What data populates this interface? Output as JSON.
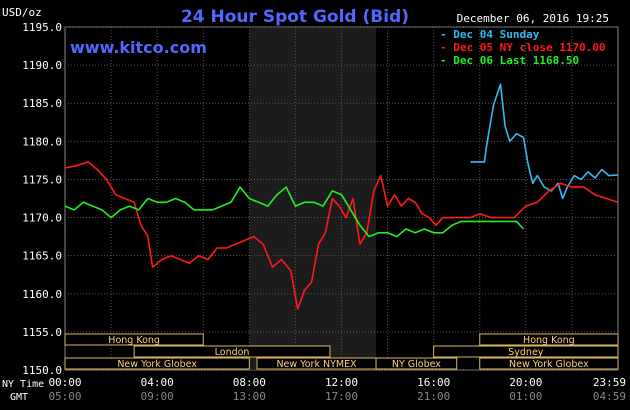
{
  "header": {
    "unit": "USD/oz",
    "title": "24 Hour Spot Gold (Bid)",
    "website": "www.kitco.com",
    "date": "December 06, 2016 19:25"
  },
  "legend": [
    {
      "label": "Dec 04 Sunday",
      "color": "#33bbee"
    },
    {
      "label": "Dec 05 NY close 1170.00",
      "color": "#ff1a1a"
    },
    {
      "label": "Dec 06 Last 1168.50",
      "color": "#22ee22"
    }
  ],
  "sessions": [
    {
      "label": "Hong Kong",
      "row": 0,
      "start": "00:00",
      "end": "06:00"
    },
    {
      "label": "Hong Kong",
      "row": 0,
      "start": "18:00",
      "end": "24:00"
    },
    {
      "label": "London",
      "row": 1,
      "start": "03:00",
      "end": "11:30"
    },
    {
      "label": "Sydney",
      "row": 1,
      "start": "16:00",
      "end": "24:00"
    },
    {
      "label": "New York Globex",
      "row": 2,
      "start": "00:00",
      "end": "08:00"
    },
    {
      "label": "New York NYMEX",
      "row": 2,
      "start": "08:20",
      "end": "13:30"
    },
    {
      "label": "NY Globex",
      "row": 2,
      "start": "13:30",
      "end": "17:00"
    },
    {
      "label": "New York Globex",
      "row": 2,
      "start": "18:00",
      "end": "24:00"
    }
  ],
  "time_labels": {
    "ny_label": "NY Time",
    "gmt_label": "GMT",
    "ny": [
      "00:00",
      "04:00",
      "08:00",
      "12:00",
      "16:00",
      "20:00",
      "23:59"
    ],
    "gmt": [
      "05:00",
      "09:00",
      "13:00",
      "17:00",
      "21:00",
      "01:00",
      "04:59"
    ]
  },
  "chart_data": {
    "type": "line",
    "title": "24 Hour Spot Gold (Bid)",
    "ylabel": "USD/oz",
    "xlabel": "",
    "ylim": [
      1150,
      1195
    ],
    "xlim": [
      0,
      24
    ],
    "yticks": [
      "1195.0",
      "1190.0",
      "1185.0",
      "1180.0",
      "1175.0",
      "1170.0",
      "1165.0",
      "1160.0",
      "1155.0",
      "1150.0"
    ],
    "grid": true,
    "highlight_hours": [
      8.0,
      13.5
    ],
    "legend_position": "top-right",
    "series": [
      {
        "name": "Dec 04 Sunday",
        "color": "#33bbee",
        "x": [
          17.6,
          18.2,
          18.3,
          18.6,
          18.9,
          19.1,
          19.3,
          19.6,
          19.9,
          20.1,
          20.3,
          20.5,
          20.8,
          21.1,
          21.4,
          21.6,
          21.8,
          22.1,
          22.4,
          22.7,
          23.0,
          23.3,
          23.6,
          23.99
        ],
        "y": [
          1177.3,
          1177.3,
          1179.5,
          1184.8,
          1187.5,
          1182.0,
          1180.0,
          1181.0,
          1180.5,
          1177.0,
          1174.5,
          1175.5,
          1174.0,
          1173.5,
          1174.5,
          1172.5,
          1174.0,
          1175.5,
          1175.0,
          1176.0,
          1175.2,
          1176.3,
          1175.5,
          1175.6
        ]
      },
      {
        "name": "Dec 05 NY close 1170.00",
        "color": "#ff1a1a",
        "x": [
          0,
          0.5,
          1.0,
          1.4,
          1.8,
          2.2,
          2.6,
          3.0,
          3.3,
          3.6,
          3.8,
          4.2,
          4.6,
          5.0,
          5.4,
          5.8,
          6.2,
          6.6,
          7.0,
          7.4,
          7.8,
          8.2,
          8.6,
          9.0,
          9.4,
          9.8,
          10.1,
          10.4,
          10.7,
          11.0,
          11.3,
          11.6,
          11.9,
          12.2,
          12.5,
          12.8,
          13.1,
          13.4,
          13.7,
          14.0,
          14.3,
          14.6,
          14.9,
          15.2,
          15.5,
          15.8,
          16.1,
          16.4,
          16.8,
          17.2,
          17.6,
          18.0,
          18.5,
          19.0,
          19.5,
          20.0,
          20.5,
          21.0,
          21.5,
          22.0,
          22.5,
          23.0,
          23.5,
          23.99
        ],
        "y": [
          1176.5,
          1176.8,
          1177.3,
          1176.3,
          1175.0,
          1173.0,
          1172.5,
          1172.0,
          1169.0,
          1167.5,
          1163.5,
          1164.5,
          1165.0,
          1164.5,
          1164.0,
          1165.0,
          1164.5,
          1166.0,
          1166.0,
          1166.5,
          1167.0,
          1167.5,
          1166.5,
          1163.5,
          1164.5,
          1163.0,
          1158.0,
          1160.5,
          1161.5,
          1166.5,
          1168.0,
          1172.5,
          1171.5,
          1170.0,
          1172.5,
          1166.5,
          1168.0,
          1173.5,
          1175.5,
          1171.5,
          1173.0,
          1171.5,
          1172.5,
          1172.0,
          1170.5,
          1170.0,
          1169.0,
          1170.0,
          1170.0,
          1170.0,
          1170.0,
          1170.5,
          1170.0,
          1170.0,
          1170.0,
          1171.5,
          1172.0,
          1173.5,
          1174.5,
          1174.0,
          1174.0,
          1173.0,
          1172.5,
          1172.0
        ]
      },
      {
        "name": "Dec 06 Last 1168.50",
        "color": "#22ee22",
        "x": [
          0,
          0.4,
          0.8,
          1.2,
          1.6,
          2.0,
          2.4,
          2.8,
          3.2,
          3.6,
          4.0,
          4.4,
          4.8,
          5.2,
          5.6,
          6.0,
          6.4,
          6.8,
          7.2,
          7.6,
          8.0,
          8.4,
          8.8,
          9.2,
          9.6,
          10.0,
          10.4,
          10.8,
          11.2,
          11.6,
          12.0,
          12.4,
          12.8,
          13.2,
          13.6,
          14.0,
          14.4,
          14.8,
          15.2,
          15.6,
          16.0,
          16.4,
          16.8,
          17.2,
          17.6,
          18.0,
          18.4,
          18.8,
          19.2,
          19.6,
          19.9
        ],
        "y": [
          1171.5,
          1171.0,
          1172.0,
          1171.5,
          1171.0,
          1170.0,
          1171.0,
          1171.5,
          1171.0,
          1172.5,
          1172.0,
          1172.0,
          1172.5,
          1172.0,
          1171.0,
          1171.0,
          1171.0,
          1171.5,
          1172.0,
          1174.0,
          1172.5,
          1172.0,
          1171.5,
          1173.0,
          1174.0,
          1171.5,
          1172.0,
          1172.0,
          1171.5,
          1173.5,
          1173.0,
          1171.0,
          1169.0,
          1167.5,
          1168.0,
          1168.0,
          1167.5,
          1168.5,
          1168.0,
          1168.5,
          1168.0,
          1168.0,
          1169.0,
          1169.5,
          1169.5,
          1169.5,
          1169.5,
          1169.5,
          1169.5,
          1169.5,
          1168.5
        ]
      }
    ]
  }
}
